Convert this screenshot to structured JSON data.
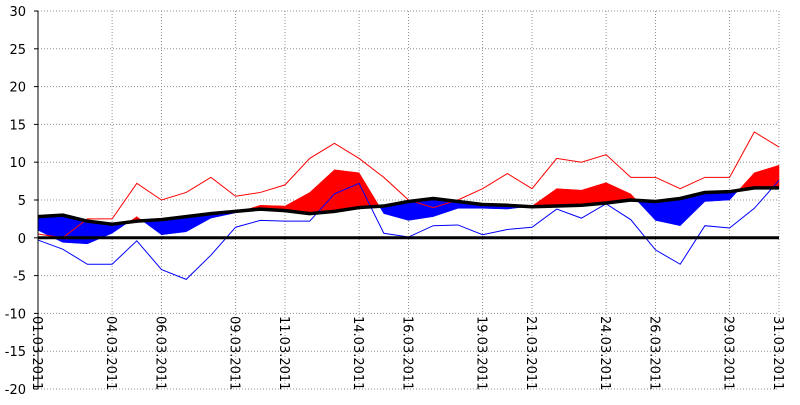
{
  "chart_data": {
    "type": "area",
    "title": "",
    "xlabel": "",
    "ylabel": "",
    "ylim": [
      -20,
      30
    ],
    "xlim": [
      "01.03.2011",
      "31.03.2011"
    ],
    "grid": true,
    "y_ticks": [
      30,
      25,
      20,
      15,
      10,
      5,
      0,
      -5,
      -10,
      -15,
      -20
    ],
    "x_tick_labels": [
      "01.03.2011",
      "04.03.2011",
      "06.03.2011",
      "09.03.2011",
      "11.03.2011",
      "14.03.2011",
      "16.03.2011",
      "19.03.2011",
      "21.03.2011",
      "24.03.2011",
      "26.03.2011",
      "29.03.2011",
      "31.03.2011"
    ],
    "x": [
      "01.03.2011",
      "02.03.2011",
      "03.03.2011",
      "04.03.2011",
      "05.03.2011",
      "06.03.2011",
      "07.03.2011",
      "08.03.2011",
      "09.03.2011",
      "10.03.2011",
      "11.03.2011",
      "12.03.2011",
      "13.03.2011",
      "14.03.2011",
      "15.03.2011",
      "16.03.2011",
      "17.03.2011",
      "18.03.2011",
      "19.03.2011",
      "20.03.2011",
      "21.03.2011",
      "22.03.2011",
      "23.03.2011",
      "24.03.2011",
      "25.03.2011",
      "26.03.2011",
      "27.03.2011",
      "28.03.2011",
      "29.03.2011",
      "30.03.2011",
      "31.03.2011"
    ],
    "series": [
      {
        "values": [
          2.8,
          3.0,
          2.2,
          1.8,
          2.2,
          2.4,
          2.8,
          3.2,
          3.5,
          3.8,
          3.6,
          3.2,
          3.5,
          4.0,
          4.2,
          4.8,
          5.2,
          4.8,
          4.4,
          4.3,
          4.1,
          4.2,
          4.3,
          4.6,
          5.0,
          4.8,
          5.2,
          6.0,
          6.1,
          6.6,
          6.6
        ]
      },
      {
        "values": [
          1.0,
          -0.6,
          -0.8,
          0.6,
          2.8,
          0.4,
          0.8,
          2.6,
          3.3,
          4.3,
          4.2,
          6.0,
          9.0,
          8.6,
          3.2,
          2.3,
          2.8,
          3.9,
          3.9,
          3.8,
          4.2,
          6.5,
          6.3,
          7.3,
          5.8,
          2.3,
          1.6,
          4.8,
          5.0,
          8.6,
          9.6
        ]
      },
      {
        "values": [
          0.5,
          0,
          2.5,
          2.5,
          7.2,
          5.0,
          6.0,
          8.0,
          5.5,
          6.0,
          7.0,
          10.5,
          12.5,
          10.5,
          8.0,
          5.0,
          4.0,
          5.0,
          6.5,
          8.5,
          6.5,
          10.5,
          10.0,
          11.0,
          8.0,
          8.0,
          6.5,
          8.0,
          8.0,
          14.0,
          12.0
        ]
      },
      {
        "values": [
          -0.3,
          -1.5,
          -3.5,
          -3.5,
          -0.4,
          -4.2,
          -5.5,
          -2.3,
          1.4,
          2.3,
          2.2,
          2.2,
          5.8,
          7.2,
          0.6,
          0.1,
          1.6,
          1.7,
          0.4,
          1.1,
          1.4,
          3.8,
          2.6,
          4.5,
          2.4,
          -1.6,
          -3.5,
          1.6,
          1.3,
          3.9,
          7.6
        ]
      }
    ],
    "colors": {
      "normal": "#000000",
      "above": "#ff0000",
      "below": "#0000ff",
      "max_line": "#ff0000",
      "min_line": "#0000ff",
      "grid": "#909090",
      "zero_line": "#000000"
    }
  }
}
